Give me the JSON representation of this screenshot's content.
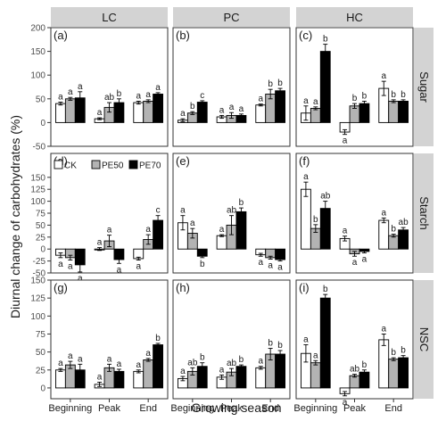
{
  "figure": {
    "ylabel": "Diurnal change of carbohydrates (%)",
    "xlabel": "Growing season",
    "columns": [
      "LC",
      "PC",
      "HC"
    ],
    "rows": [
      "Sugar",
      "Starch",
      "NSC"
    ],
    "legend": [
      "CK",
      "PE50",
      "PE70"
    ],
    "colors": {
      "CK": "#ffffff",
      "PE50": "#b3b3b3",
      "PE70": "#000000",
      "strip": "#d3d3d3"
    }
  },
  "chart_data": {
    "type": "bar",
    "categories": [
      "Beginning",
      "Peak",
      "End"
    ],
    "series_names": [
      "CK",
      "PE50",
      "PE70"
    ],
    "rows": [
      {
        "name": "Sugar",
        "ylim": [
          -50,
          200
        ],
        "yticks": [
          -50,
          0,
          50,
          100,
          150,
          200
        ]
      },
      {
        "name": "Starch",
        "ylim": [
          -50,
          200
        ],
        "yticks": [
          -50,
          -25,
          0,
          25,
          50,
          75,
          100,
          125,
          150
        ]
      },
      {
        "name": "NSC",
        "ylim": [
          -15,
          150
        ],
        "yticks": [
          0,
          25,
          50,
          75,
          100,
          125,
          150
        ]
      }
    ],
    "panels": [
      {
        "id": "(a)",
        "row": 0,
        "col": 0,
        "values": [
          [
            40,
            50,
            52
          ],
          [
            8,
            32,
            42
          ],
          [
            42,
            45,
            60
          ]
        ],
        "errors": [
          [
            3,
            3,
            13
          ],
          [
            2,
            10,
            8
          ],
          [
            3,
            3,
            3
          ]
        ],
        "letters": [
          [
            "a",
            "a",
            "a"
          ],
          [
            "a",
            "ab",
            "b"
          ],
          [
            "a",
            "a",
            "a"
          ]
        ]
      },
      {
        "id": "(b)",
        "row": 0,
        "col": 1,
        "values": [
          [
            5,
            20,
            43
          ],
          [
            12,
            15,
            15
          ],
          [
            37,
            60,
            67
          ]
        ],
        "errors": [
          [
            3,
            3,
            3
          ],
          [
            3,
            6,
            3
          ],
          [
            2,
            10,
            5
          ]
        ],
        "letters": [
          [
            "a",
            "b",
            "c"
          ],
          [
            "a",
            "a",
            "a"
          ],
          [
            "a",
            "b",
            "b"
          ]
        ]
      },
      {
        "id": "(c)",
        "row": 0,
        "col": 2,
        "values": [
          [
            20,
            30,
            150
          ],
          [
            -20,
            35,
            40
          ],
          [
            72,
            45,
            45
          ]
        ],
        "errors": [
          [
            15,
            3,
            15
          ],
          [
            5,
            5,
            5
          ],
          [
            15,
            3,
            3
          ]
        ],
        "letters": [
          [
            "a",
            "a",
            "b"
          ],
          [
            "a",
            "b",
            "b"
          ],
          [
            "a",
            "b",
            "b"
          ]
        ]
      },
      {
        "id": "(d)",
        "row": 1,
        "col": 0,
        "values": [
          [
            -13,
            -18,
            -33
          ],
          [
            0,
            17,
            -22
          ],
          [
            -20,
            20,
            60
          ]
        ],
        "errors": [
          [
            5,
            5,
            15
          ],
          [
            3,
            12,
            8
          ],
          [
            3,
            10,
            10
          ]
        ],
        "letters": [
          [
            "a",
            "a",
            "a"
          ],
          [
            "a",
            "a",
            "a"
          ],
          [
            "a",
            "a",
            "c"
          ]
        ]
      },
      {
        "id": "(e)",
        "row": 1,
        "col": 1,
        "values": [
          [
            55,
            33,
            -15
          ],
          [
            28,
            50,
            78
          ],
          [
            -12,
            -18,
            -22
          ]
        ],
        "errors": [
          [
            15,
            10,
            3
          ],
          [
            2,
            20,
            8
          ],
          [
            3,
            3,
            3
          ]
        ],
        "letters": [
          [
            "a",
            "a",
            "b"
          ],
          [
            "a",
            "ab",
            "b"
          ],
          [
            "a",
            "a",
            "a"
          ]
        ]
      },
      {
        "id": "(f)",
        "row": 1,
        "col": 2,
        "values": [
          [
            125,
            43,
            85
          ],
          [
            22,
            -10,
            -5
          ],
          [
            60,
            28,
            40
          ]
        ],
        "errors": [
          [
            15,
            8,
            15
          ],
          [
            5,
            5,
            3
          ],
          [
            5,
            3,
            5
          ]
        ],
        "letters": [
          [
            "a",
            "b",
            "ab"
          ],
          [
            "a",
            "a",
            "a"
          ],
          [
            "a",
            "b",
            "ab"
          ]
        ]
      },
      {
        "id": "(g)",
        "row": 2,
        "col": 0,
        "values": [
          [
            25,
            32,
            25
          ],
          [
            5,
            28,
            23
          ],
          [
            23,
            39,
            60
          ]
        ],
        "errors": [
          [
            2,
            5,
            8
          ],
          [
            3,
            5,
            3
          ],
          [
            2,
            2,
            2
          ]
        ],
        "letters": [
          [
            "a",
            "a",
            "a"
          ],
          [
            "a",
            "a",
            "a"
          ],
          [
            "a",
            "a",
            "b"
          ]
        ]
      },
      {
        "id": "(h)",
        "row": 2,
        "col": 1,
        "values": [
          [
            13,
            23,
            30
          ],
          [
            15,
            22,
            30
          ],
          [
            28,
            47,
            47
          ]
        ],
        "errors": [
          [
            3,
            5,
            5
          ],
          [
            3,
            5,
            2
          ],
          [
            2,
            8,
            5
          ]
        ],
        "letters": [
          [
            "a",
            "ab",
            "b"
          ],
          [
            "a",
            "ab",
            "b"
          ],
          [
            "a",
            "b",
            "b"
          ]
        ]
      },
      {
        "id": "(i)",
        "row": 2,
        "col": 2,
        "values": [
          [
            48,
            35,
            125
          ],
          [
            -8,
            17,
            22
          ],
          [
            67,
            40,
            42
          ]
        ],
        "errors": [
          [
            12,
            3,
            5
          ],
          [
            3,
            2,
            3
          ],
          [
            8,
            2,
            3
          ]
        ],
        "letters": [
          [
            "a",
            "a",
            "b"
          ],
          [
            "a",
            "ab",
            "b"
          ],
          [
            "a",
            "b",
            "b"
          ]
        ]
      }
    ]
  }
}
